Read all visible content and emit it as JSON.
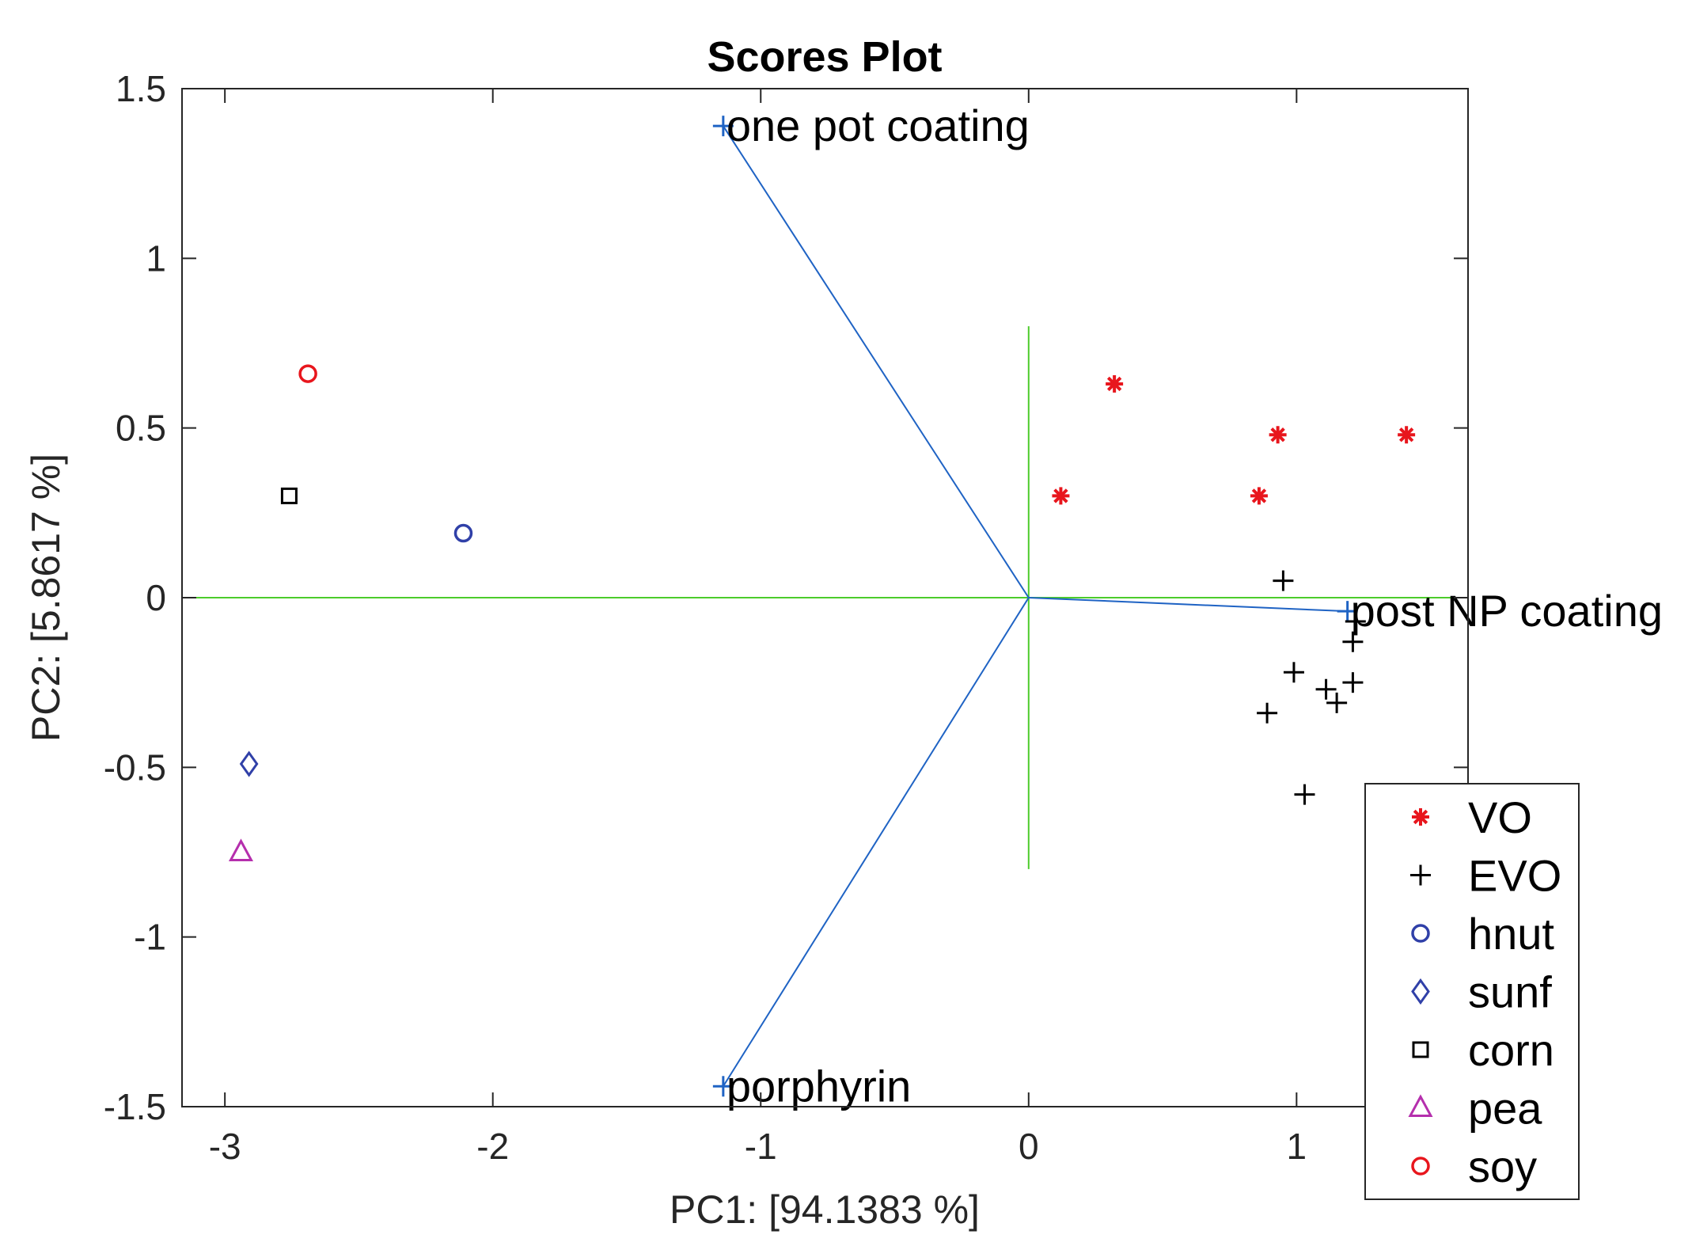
{
  "chart_data": {
    "type": "scatter",
    "title": "Scores Plot",
    "xlabel": "PC1: [94.1383 %]",
    "ylabel": "PC2: [5.8617 %]",
    "xlim": [
      -3.16,
      1.64
    ],
    "ylim": [
      -1.5,
      1.5
    ],
    "xticks": [
      -3,
      -2,
      -1,
      0,
      1
    ],
    "xtick_labels": [
      "-3",
      "-2",
      "-1",
      "0",
      "1"
    ],
    "yticks": [
      -1.5,
      -1,
      -0.5,
      0,
      0.5,
      1,
      1.5
    ],
    "ytick_labels": [
      "-1.5",
      "-1",
      "-0.5",
      "0",
      "0.5",
      "1",
      "1.5"
    ],
    "reference_lines": {
      "color": "#4ccc2b",
      "horizontal": {
        "y": 0,
        "x": [
          -3.16,
          1.64
        ]
      },
      "vertical": {
        "x": 0,
        "y": [
          -0.8,
          0.8
        ]
      }
    },
    "loadings": {
      "color": "#1f63c4",
      "vectors": [
        {
          "label": "one pot coating",
          "x": -1.14,
          "y": 1.39
        },
        {
          "label": "post NP coating",
          "x": 1.19,
          "y": -0.04
        },
        {
          "label": "porphyrin",
          "x": -1.14,
          "y": -1.44
        }
      ]
    },
    "series": [
      {
        "name": "VO",
        "marker": "asterisk",
        "color": "#e8161d",
        "points": [
          [
            0.12,
            0.3
          ],
          [
            0.32,
            0.63
          ],
          [
            0.93,
            0.48
          ],
          [
            1.41,
            0.48
          ],
          [
            0.86,
            0.3
          ]
        ]
      },
      {
        "name": "EVO",
        "marker": "plus",
        "color": "#000000",
        "points": [
          [
            0.95,
            0.05
          ],
          [
            1.22,
            -0.07
          ],
          [
            1.21,
            -0.13
          ],
          [
            0.99,
            -0.22
          ],
          [
            1.11,
            -0.27
          ],
          [
            1.15,
            -0.31
          ],
          [
            1.21,
            -0.25
          ],
          [
            0.89,
            -0.34
          ],
          [
            1.03,
            -0.58
          ]
        ]
      },
      {
        "name": "hnut",
        "marker": "circle",
        "color": "#3040a8",
        "points": [
          [
            -2.11,
            0.19
          ]
        ]
      },
      {
        "name": "sunf",
        "marker": "diamond",
        "color": "#3040a8",
        "points": [
          [
            -2.91,
            -0.49
          ]
        ]
      },
      {
        "name": "corn",
        "marker": "square",
        "color": "#000000",
        "points": [
          [
            -2.76,
            0.3
          ]
        ]
      },
      {
        "name": "pea",
        "marker": "triangle",
        "color": "#b52fad",
        "points": [
          [
            -2.94,
            -0.75
          ]
        ]
      },
      {
        "name": "soy",
        "marker": "circle",
        "color": "#e8161d",
        "points": [
          [
            -2.69,
            0.66
          ]
        ]
      }
    ],
    "legend": {
      "position": "bottom-right",
      "entries": [
        "VO",
        "EVO",
        "hnut",
        "sunf",
        "corn",
        "pea",
        "soy"
      ]
    }
  }
}
